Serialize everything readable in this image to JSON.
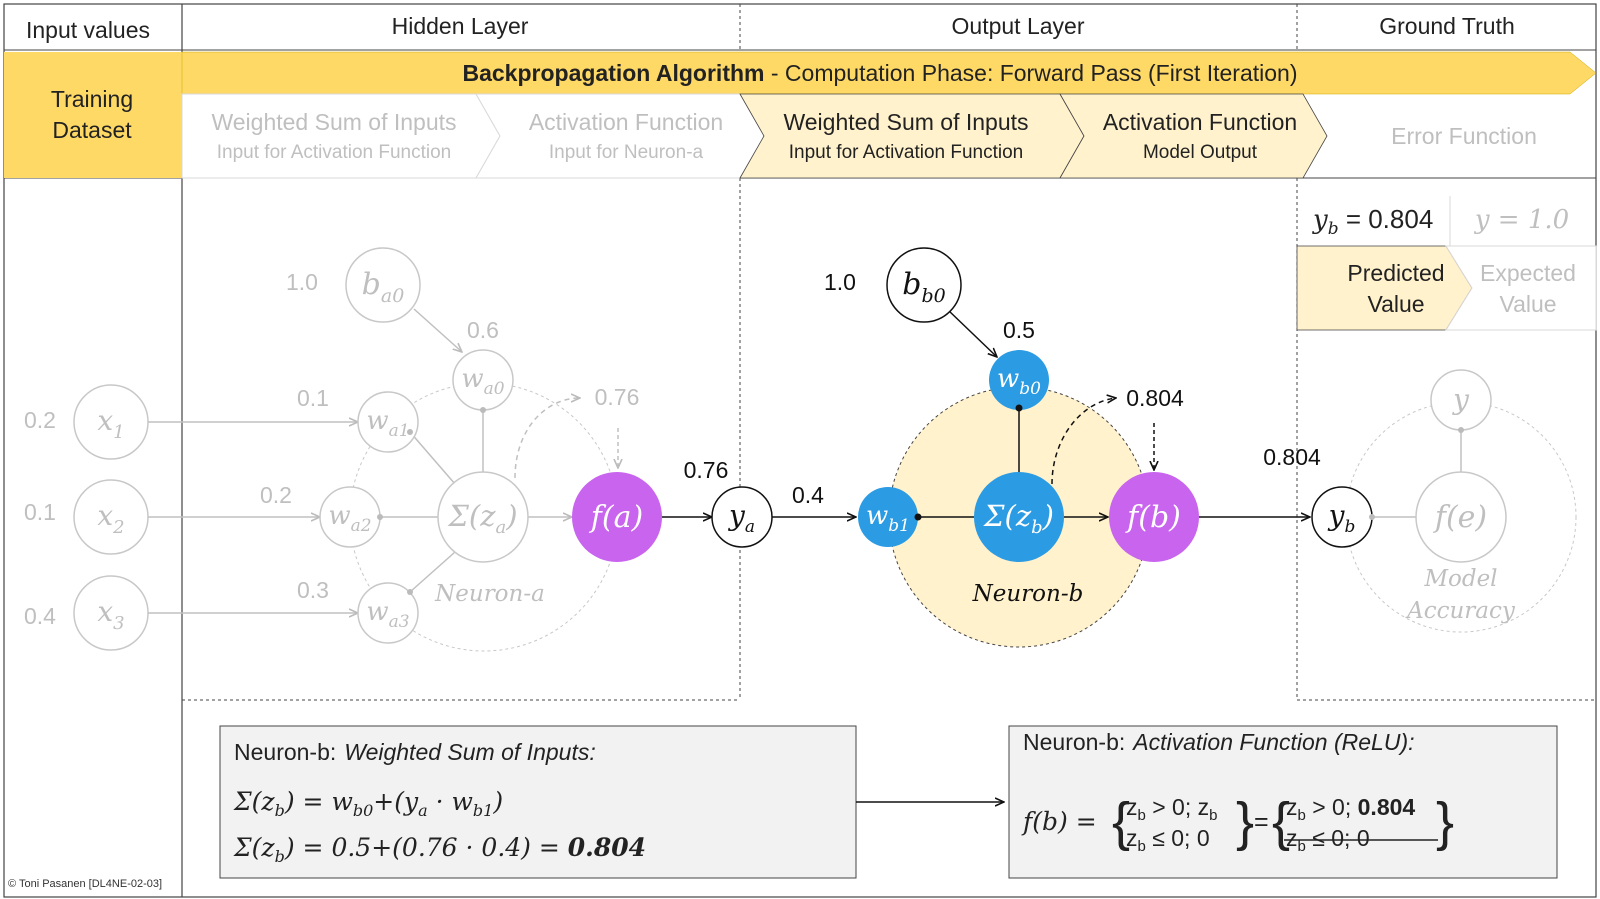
{
  "header": {
    "col_input": "Input values",
    "col_hidden": "Hidden Layer",
    "col_output": "Output Layer",
    "col_truth": "Ground Truth"
  },
  "banner": {
    "title_bold": "Backpropagation Algorithm",
    "title_rest": " - Computation Phase: Forward Pass (First Iteration)",
    "left_label_1": "Training",
    "left_label_2": "Dataset"
  },
  "steps": [
    {
      "title": "Weighted Sum of Inputs",
      "sub": "Input for Activation Function",
      "state": "inactive"
    },
    {
      "title": "Activation Function",
      "sub": "Input for Neuron-a",
      "state": "inactive"
    },
    {
      "title": "Weighted Sum of Inputs",
      "sub": "Input for Activation Function",
      "state": "active"
    },
    {
      "title": "Activation Function",
      "sub": "Model Output",
      "state": "active"
    },
    {
      "title": "Error Function",
      "sub": "",
      "state": "inactive"
    }
  ],
  "ground_truth": {
    "pred_symbol": "y",
    "pred_sub": "b",
    "pred_value": " = 0.804",
    "expected_text": "y = 1.0",
    "predicted_label_1": "Predicted",
    "predicted_label_2": "Value",
    "expected_label_1": "Expected",
    "expected_label_2": "Value"
  },
  "inputs": [
    {
      "value": "0.2",
      "symbol": "x",
      "sub": "1"
    },
    {
      "value": "0.1",
      "symbol": "x",
      "sub": "2"
    },
    {
      "value": "0.4",
      "symbol": "x",
      "sub": "3"
    }
  ],
  "neuron_a": {
    "bias_value": "1.0",
    "bias_symbol": "b",
    "bias_sub": "a0",
    "w0": "0.6",
    "w1": "0.1",
    "w2": "0.2",
    "w3": "0.3",
    "w0_label": "w",
    "w0_sub": "a0",
    "w1_label": "w",
    "w1_sub": "a1",
    "w2_label": "w",
    "w2_sub": "a2",
    "w3_label": "w",
    "w3_sub": "a3",
    "sum_label": "Σ(z",
    "sum_sub": "a",
    "sum_close": ")",
    "act_label": "f(a)",
    "output_value": "0.76",
    "name": "Neuron-a"
  },
  "ya": {
    "symbol": "y",
    "sub": "a",
    "value": "0.76"
  },
  "neuron_b": {
    "bias_value": "1.0",
    "bias_symbol": "b",
    "bias_sub": "b0",
    "w0": "0.5",
    "w1": "0.4",
    "w0_label": "w",
    "w0_sub": "b0",
    "w1_label": "w",
    "w1_sub": "b1",
    "sum_label": "Σ(z",
    "sum_sub": "b",
    "sum_close": ")",
    "act_label": "f(b)",
    "output_value": "0.804",
    "name": "Neuron-b"
  },
  "yb": {
    "symbol": "y",
    "sub": "b",
    "value": "0.804"
  },
  "error_neuron": {
    "y_label": "y",
    "f_label": "f(e)",
    "name_1": "Model",
    "name_2": "Accuracy"
  },
  "formula_sum": {
    "heading": "Neuron-b:",
    "heading_italic": "Weighted Sum of Inputs:",
    "line1": "Σ(z_b) = w_b0+(y_a · w_b1)",
    "line2": "Σ(z_b) = 0.5+(0.76 · 0.4) = 0.804"
  },
  "formula_act": {
    "heading": "Neuron-b:",
    "heading_italic": "Activation Function (ReLU):",
    "lhs": "f(b) =",
    "case1": "z_b > 0; z_b",
    "case2": "z_b ≤ 0; 0",
    "rcase1": "z_b > 0; 0.804",
    "rcase2": "z_b ≤ 0; 0"
  },
  "footer": {
    "credit": "© Toni Pasanen [DL4NE-02-03]"
  },
  "colors": {
    "yellow": "#ffd966",
    "light_yellow": "#fff2cc",
    "blue": "#2b9be3",
    "purple": "#c864ee",
    "grey": "#bfbfbf",
    "box_fill": "#f2f2f2"
  }
}
